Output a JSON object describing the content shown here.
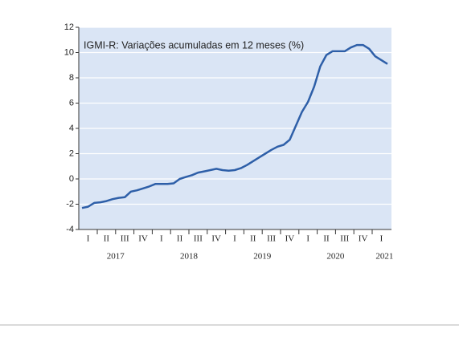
{
  "chart_data": {
    "type": "line",
    "title": "IGMI-R: Variações acumuladas em 12 meses (%)",
    "categories": [
      null,
      "I",
      null,
      null,
      "II",
      null,
      null,
      "III",
      null,
      null,
      "IV",
      null,
      null,
      "I",
      null,
      null,
      "II",
      null,
      null,
      "III",
      null,
      null,
      "IV",
      null,
      null,
      "I",
      null,
      null,
      "II",
      null,
      null,
      "III",
      null,
      null,
      "IV",
      null,
      null,
      "I",
      null,
      null,
      "II",
      null,
      null,
      "III",
      null,
      null,
      "IV",
      null,
      null,
      "I",
      null
    ],
    "years": [
      "2017",
      "2018",
      "2019",
      "2020",
      "2021"
    ],
    "series": [
      {
        "name": "IGMI-R",
        "color": "#2e5fa8",
        "values": [
          -2.3,
          -2.2,
          -1.9,
          -1.85,
          -1.75,
          -1.6,
          -1.5,
          -1.45,
          -1.0,
          -0.9,
          -0.75,
          -0.6,
          -0.4,
          -0.4,
          -0.4,
          -0.35,
          0.0,
          0.15,
          0.3,
          0.5,
          0.6,
          0.7,
          0.8,
          0.7,
          0.65,
          0.7,
          0.85,
          1.1,
          1.4,
          1.7,
          2.0,
          2.3,
          2.55,
          2.7,
          3.1,
          4.2,
          5.3,
          6.1,
          7.3,
          8.9,
          9.8,
          10.1,
          10.1,
          10.1,
          10.4,
          10.6,
          10.6,
          10.3,
          9.7,
          9.4,
          9.1
        ]
      }
    ],
    "ylim": [
      -4,
      12
    ],
    "yticks": [
      -4,
      -2,
      0,
      2,
      4,
      6,
      8,
      10,
      12
    ],
    "grid": true
  }
}
